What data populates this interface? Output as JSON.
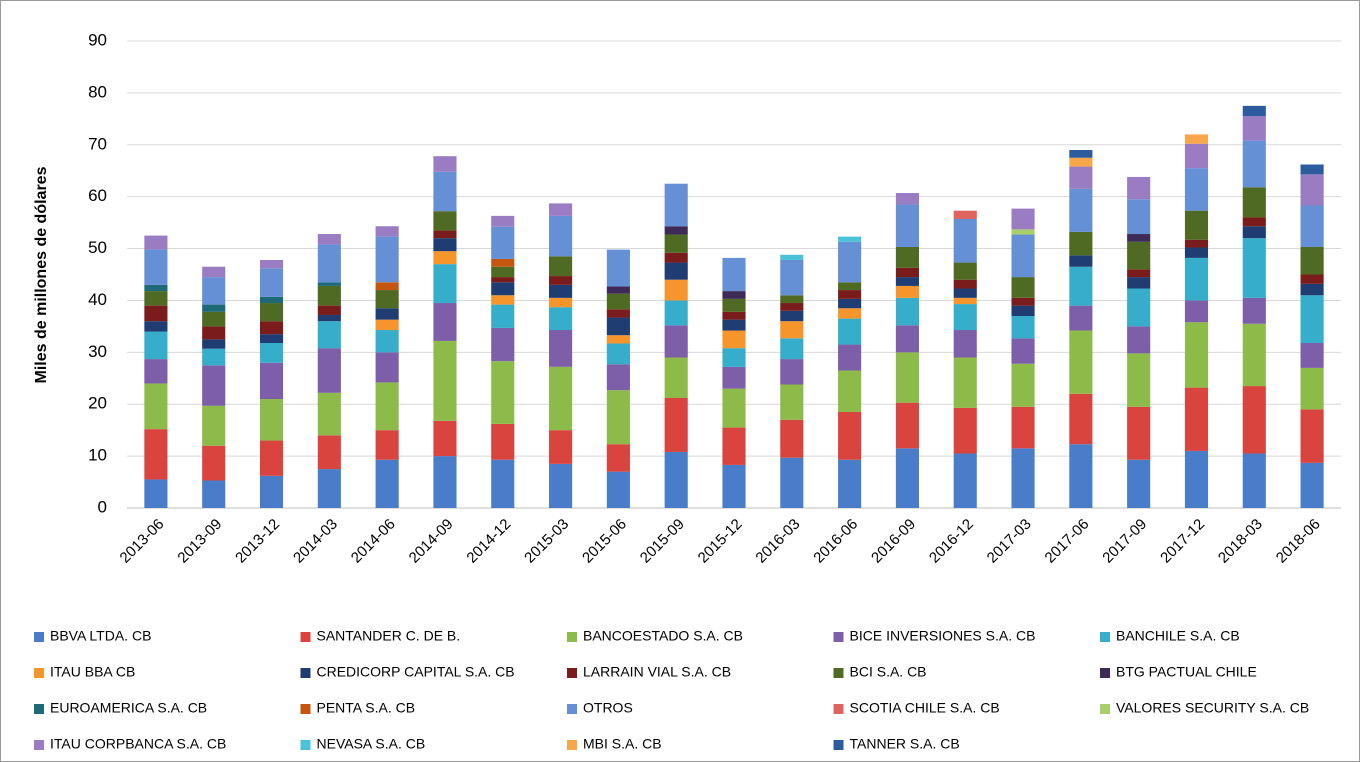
{
  "chart_data": {
    "type": "stacked_bar",
    "y_axis_label": "Miles de millones de dólares",
    "categories": [
      "2013-06",
      "2013-09",
      "2013-12",
      "2014-03",
      "2014-06",
      "2014-09",
      "2014-12",
      "2015-03",
      "2015-06",
      "2015-09",
      "2015-12",
      "2016-03",
      "2016-06",
      "2016-09",
      "2016-12",
      "2017-03",
      "2017-06",
      "2017-09",
      "2017-12",
      "2018-03",
      "2018-06"
    ],
    "ylim": [
      0,
      90
    ],
    "yticks": [
      0,
      10,
      20,
      30,
      40,
      50,
      60,
      70,
      80,
      90
    ],
    "grid": true,
    "legend": "bottom",
    "series": [
      {
        "name": "BBVA  LTDA. CB",
        "color": "#4a7dc9",
        "values": [
          5.5,
          5.3,
          6.2,
          7.5,
          9.3,
          10,
          9.3,
          8.5,
          7,
          10.8,
          8.3,
          9.7,
          9.3,
          11.5,
          10.5,
          11.5,
          12.3,
          9.3,
          11,
          10.5,
          8.7
        ]
      },
      {
        "name": "SANTANDER C. DE B.",
        "color": "#d9443f",
        "values": [
          9.7,
          6.7,
          6.8,
          6.5,
          5.7,
          6.8,
          6.9,
          6.5,
          5.3,
          10.4,
          7.2,
          7.3,
          9.2,
          8.8,
          8.8,
          8,
          9.7,
          10.2,
          12.2,
          13,
          10.3
        ]
      },
      {
        "name": "BANCOESTADO S.A. CB",
        "color": "#8dbb4a",
        "values": [
          8.8,
          7.7,
          8,
          8.2,
          9.2,
          15.4,
          12.1,
          12.2,
          10.4,
          7.8,
          7.5,
          6.8,
          8,
          9.7,
          9.7,
          8.3,
          12.2,
          10.3,
          12.6,
          12,
          8
        ]
      },
      {
        "name": "BICE INVERSIONES S.A. CB",
        "color": "#7d5ea8",
        "values": [
          4.7,
          7.8,
          7,
          8.6,
          5.8,
          7.3,
          6.4,
          7.1,
          5,
          6.2,
          4.2,
          4.9,
          5,
          5.2,
          5.3,
          4.9,
          4.8,
          5.2,
          4.2,
          5,
          4.8
        ]
      },
      {
        "name": "BANCHILE S.A. CB",
        "color": "#36aecb",
        "values": [
          5.3,
          3.2,
          3.8,
          5.2,
          4.3,
          7.5,
          4.5,
          4.4,
          4,
          4.8,
          3.6,
          4,
          5,
          5.3,
          5,
          4.3,
          7.5,
          7.3,
          8.2,
          11.5,
          9.2
        ]
      },
      {
        "name": "ITAU BBA CB",
        "color": "#f6952c",
        "values": [
          0,
          0,
          0,
          0,
          2,
          2.5,
          1.8,
          1.8,
          1.6,
          4,
          3.4,
          3.3,
          2,
          2.3,
          1.2,
          0,
          0,
          0,
          0,
          0,
          0
        ]
      },
      {
        "name": "CREDICORP CAPITAL S.A. CB",
        "color": "#1f3d72",
        "values": [
          2,
          1.8,
          1.7,
          1.2,
          2.2,
          2.5,
          2.5,
          2.5,
          3.4,
          3.3,
          2.1,
          2,
          1.8,
          1.7,
          1.8,
          2,
          2.2,
          2.2,
          2,
          2.3,
          2.2
        ]
      },
      {
        "name": "LARRAIN VIAL S.A. CB",
        "color": "#7b1c1c",
        "values": [
          3,
          2.5,
          2.5,
          1.8,
          0,
          1.5,
          1,
          1.7,
          1.6,
          1.9,
          1.5,
          1.5,
          1.7,
          1.8,
          1.7,
          1.5,
          0,
          1.5,
          1.5,
          1.7,
          1.8
        ]
      },
      {
        "name": "BCI S.A. CB",
        "color": "#4f6a22",
        "values": [
          2.8,
          2.8,
          3.5,
          3.8,
          3.5,
          3.7,
          2,
          3.8,
          3,
          3.5,
          2.5,
          1.5,
          1.5,
          4,
          3.3,
          4,
          4.5,
          5.3,
          5.6,
          5.8,
          5.3
        ]
      },
      {
        "name": "BTG PACTUAL CHILE",
        "color": "#3d2a57",
        "values": [
          0,
          0,
          0,
          0,
          0,
          0,
          0,
          0,
          1.4,
          1.6,
          1.5,
          0,
          0,
          0,
          0,
          0,
          0,
          1.5,
          0,
          0,
          0
        ]
      },
      {
        "name": "EUROAMERICA S.A. CB",
        "color": "#1e6a78",
        "values": [
          1.2,
          1.4,
          1.2,
          0.7,
          0,
          0,
          0,
          0,
          0,
          0,
          0,
          0,
          0,
          0,
          0,
          0,
          0,
          0,
          0,
          0,
          0
        ]
      },
      {
        "name": "PENTA S.A. CB",
        "color": "#c5560f",
        "values": [
          0,
          0,
          0,
          0,
          1.5,
          0,
          1.5,
          0,
          0,
          0,
          0,
          0,
          0,
          0,
          0,
          0,
          0,
          0,
          0,
          0,
          0
        ]
      },
      {
        "name": "OTROS",
        "color": "#6690d6",
        "values": [
          6.8,
          5.3,
          5.5,
          7.3,
          8.8,
          7.6,
          6.2,
          7.8,
          7.1,
          8.2,
          6.4,
          6.8,
          7.8,
          8.2,
          8.4,
          8.2,
          8.3,
          6.7,
          8.2,
          9,
          8
        ]
      },
      {
        "name": "SCOTIA CHILE S.A. CB",
        "color": "#e06360",
        "values": [
          0,
          0,
          0,
          0,
          0,
          0,
          0,
          0,
          0,
          0,
          0,
          0,
          0,
          0,
          1.6,
          0,
          0,
          0,
          0,
          0,
          0
        ]
      },
      {
        "name": "VALORES SECURITY S.A. CB",
        "color": "#a9cf6b",
        "values": [
          0,
          0,
          0,
          0,
          0,
          0,
          0,
          0,
          0,
          0,
          0,
          0,
          0,
          0,
          0,
          1,
          0,
          0,
          0,
          0,
          0
        ]
      },
      {
        "name": "ITAU CORPBANCA S.A. CB",
        "color": "#9a7cc3",
        "values": [
          2.7,
          2,
          1.6,
          2,
          2,
          3,
          2.1,
          2.4,
          0,
          0,
          0,
          0,
          0,
          2.2,
          0,
          4,
          4.3,
          4.3,
          4.7,
          4.7,
          6
        ]
      },
      {
        "name": "NEVASA S.A. CB",
        "color": "#4cc2d8",
        "values": [
          0,
          0,
          0,
          0,
          0,
          0,
          0,
          0,
          0,
          0,
          0,
          1,
          1,
          0,
          0,
          0,
          0,
          0,
          0,
          0,
          0
        ]
      },
      {
        "name": "MBI S.A. CB",
        "color": "#f8a64a",
        "values": [
          0,
          0,
          0,
          0,
          0,
          0,
          0,
          0,
          0,
          0,
          0,
          0,
          0,
          0,
          0,
          0,
          1.7,
          0,
          1.8,
          0,
          0
        ]
      },
      {
        "name": "TANNER S.A. CB",
        "color": "#2d5c9e",
        "values": [
          0,
          0,
          0,
          0,
          0,
          0,
          0,
          0,
          0,
          0,
          0,
          0,
          0,
          0,
          0,
          0,
          1.5,
          0,
          0,
          2,
          1.9
        ]
      }
    ]
  }
}
